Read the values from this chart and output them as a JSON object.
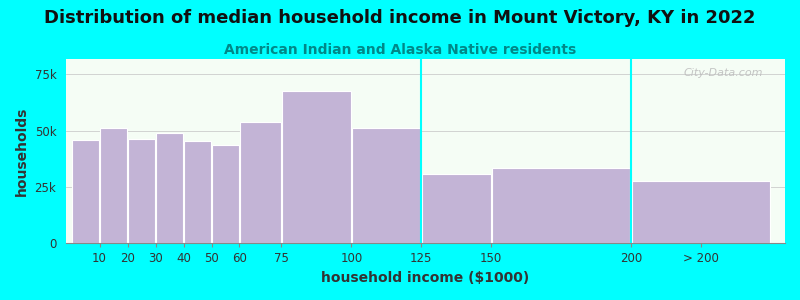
{
  "title": "Distribution of median household income in Mount Victory, KY in 2022",
  "subtitle": "American Indian and Alaska Native residents",
  "xlabel": "household income ($1000)",
  "ylabel": "households",
  "background_color": "#00FFFF",
  "bar_color": "#C3B4D6",
  "bar_edge_color": "#ffffff",
  "categories": [
    "10",
    "20",
    "30",
    "40",
    "50",
    "60",
    "75",
    "100",
    "125",
    "150",
    "200",
    "> 200"
  ],
  "left_edges": [
    0,
    10,
    20,
    30,
    40,
    50,
    60,
    75,
    100,
    125,
    150,
    200
  ],
  "widths": [
    10,
    10,
    10,
    10,
    10,
    10,
    15,
    25,
    25,
    25,
    50,
    50
  ],
  "values": [
    46000,
    51000,
    46500,
    49000,
    45500,
    43500,
    54000,
    67500,
    51000,
    31000,
    33500,
    27500
  ],
  "yticks": [
    0,
    25000,
    50000,
    75000
  ],
  "ytick_labels": [
    "0",
    "25k",
    "50k",
    "75k"
  ],
  "ylim": [
    0,
    82000
  ],
  "xlim": [
    -2,
    255
  ],
  "xtick_positions": [
    10,
    20,
    30,
    40,
    50,
    60,
    75,
    100,
    125,
    150,
    200,
    225
  ],
  "xtick_labels": [
    "10",
    "20",
    "30",
    "40",
    "50",
    "60",
    "75",
    "100",
    "125",
    "150",
    "200",
    "> 200"
  ],
  "title_fontsize": 13,
  "subtitle_fontsize": 10,
  "axis_label_fontsize": 10,
  "tick_fontsize": 8.5,
  "watermark": "City-Data.com"
}
